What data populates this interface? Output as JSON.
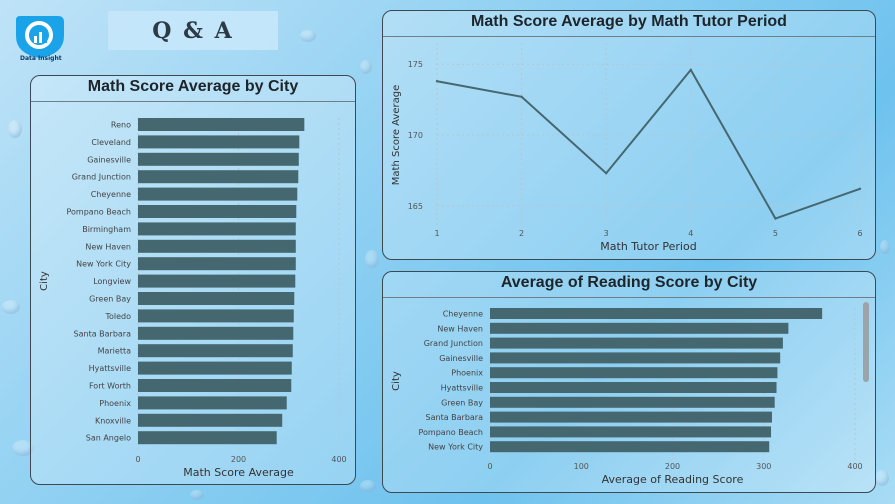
{
  "header": {
    "title": "Q & A",
    "logo_text": "Data Insight",
    "logo_icon": "data-insight-logo-icon"
  },
  "colors": {
    "bar": "#456870",
    "line": "#456870",
    "grid": "#b7c6cc"
  },
  "chart_data": [
    {
      "type": "bar",
      "orientation": "horizontal",
      "title": "Math Score Average by City",
      "xlabel": "Math Score Average",
      "ylabel": "City",
      "xlim": [
        0,
        400
      ],
      "xticks": [
        "0",
        "200",
        "400"
      ],
      "categories": [
        "Reno",
        "Cleveland",
        "Gainesville",
        "Grand Junction",
        "Cheyenne",
        "Pompano Beach",
        "Birmingham",
        "New Haven",
        "New York City",
        "Longview",
        "Green Bay",
        "Toledo",
        "Santa Barbara",
        "Marietta",
        "Hyattsville",
        "Fort Worth",
        "Phoenix",
        "Knoxville",
        "San Angelo"
      ],
      "values": [
        331,
        321,
        320,
        319,
        317,
        315,
        314,
        314,
        314,
        313,
        311,
        310,
        309,
        308,
        306,
        305,
        296,
        287,
        276
      ],
      "grid": true
    },
    {
      "type": "line",
      "title": "Math Score Average by Math Tutor Period",
      "xlabel": "Math Tutor Period",
      "ylabel": "Math Score Average",
      "x": [
        1,
        2,
        3,
        4,
        5,
        6
      ],
      "y": [
        173.8,
        172.7,
        167.3,
        174.6,
        164.1,
        166.2
      ],
      "ylim": [
        163.5,
        176.5
      ],
      "yticks": [
        "165",
        "170",
        "175"
      ],
      "xticks": [
        "1",
        "2",
        "3",
        "4",
        "5",
        "6"
      ],
      "grid": true
    },
    {
      "type": "bar",
      "orientation": "horizontal",
      "title": "Average of Reading Score by City",
      "xlabel": "Average of Reading Score",
      "ylabel": "City",
      "xlim": [
        0,
        400
      ],
      "xticks": [
        "0",
        "100",
        "200",
        "300",
        "400"
      ],
      "categories": [
        "Cheyenne",
        "New Haven",
        "Grand Junction",
        "Gainesville",
        "Phoenix",
        "Hyattsville",
        "Green Bay",
        "Santa Barbara",
        "Pompano Beach",
        "New York City"
      ],
      "values": [
        364,
        327,
        321,
        318,
        315,
        314,
        312,
        309,
        308,
        306
      ],
      "grid": true
    }
  ]
}
